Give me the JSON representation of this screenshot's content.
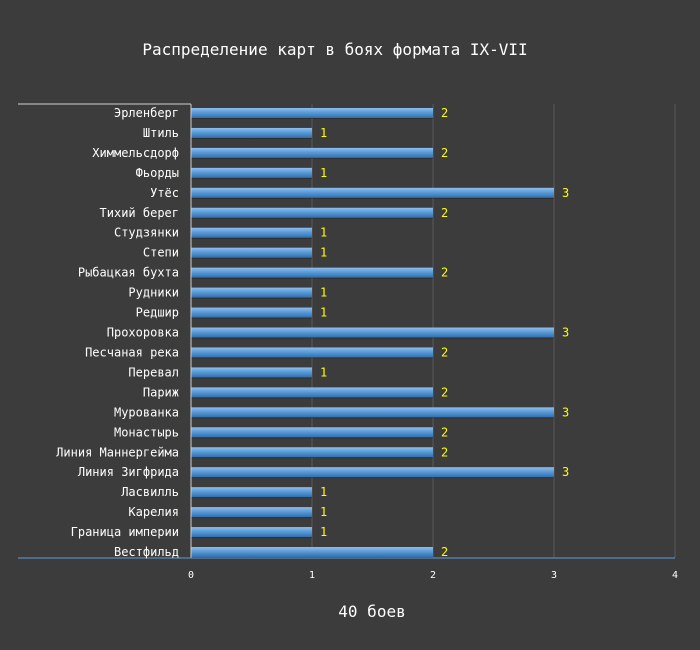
{
  "chart_data": {
    "type": "bar",
    "orientation": "horizontal",
    "title": "Распределение карт в боях формата IX-VII",
    "footer": "40 боев",
    "categories": [
      "Эрленберг",
      "Штиль",
      "Химмельсдорф",
      "Фьорды",
      "Утёс",
      "Тихий берег",
      "Студзянки",
      "Степи",
      "Рыбацкая бухта",
      "Рудники",
      "Редшир",
      "Прохоровка",
      "Песчаная река",
      "Перевал",
      "Париж",
      "Мурованка",
      "Монастырь",
      "Линия Маннергейма",
      "Линия Зигфрида",
      "Ласвилль",
      "Карелия",
      "Граница империи",
      "Вестфильд"
    ],
    "values": [
      2,
      1,
      2,
      1,
      3,
      2,
      1,
      1,
      2,
      1,
      1,
      3,
      2,
      1,
      2,
      3,
      2,
      2,
      3,
      1,
      1,
      1,
      2
    ],
    "xlim": [
      0,
      4
    ],
    "xticks": [
      0,
      1,
      2,
      3,
      4
    ],
    "grid": true,
    "legend": "none",
    "colors": {
      "background": "#3c3c3c",
      "bar": "#5b9bd5",
      "bar_dark": "#2f6fb0",
      "bar_light": "#8fbef0",
      "grid": "#5a5a5a",
      "axis": "#9a9a9a",
      "data_label": "#ffff00",
      "text": "#ffffff"
    }
  }
}
